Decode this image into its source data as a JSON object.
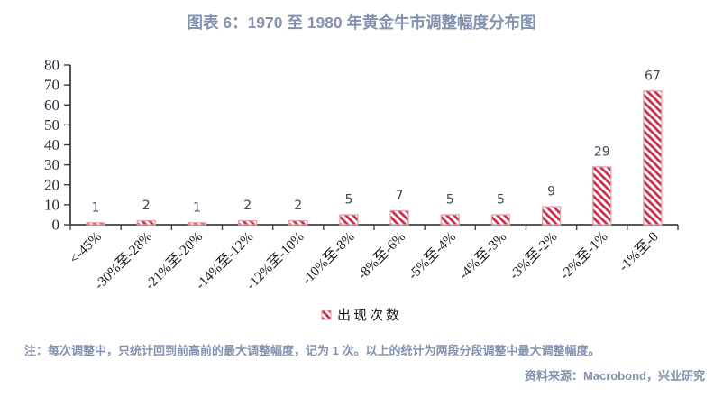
{
  "title": "图表 6：1970 至 1980 年黄金牛市调整幅度分布图",
  "legend": {
    "label": "出现次数"
  },
  "footer": {
    "note": "注：每次调整中，只统计回到前高前的最大调整幅度，记为 1 次。以上的统计为两段分段调整中最大调整幅度。",
    "source": "资料来源：Macrobond，兴业研究"
  },
  "colors": {
    "title_text": "#8292AF",
    "footer_text": "#8292AF",
    "bar_hatch": "#C5344E",
    "bar_border": "#E3A4AE",
    "axis": "#404040",
    "tick_label": "#1E2836",
    "value_label": "#3E4A5C",
    "x_label": "#1A1A1A"
  },
  "chart_data": {
    "type": "bar",
    "title": "图表 6：1970 至 1980 年黄金牛市调整幅度分布图",
    "categories": [
      "<-45%",
      "-30%至-28%",
      "-21%至-20%",
      "-14%至-12%",
      "-12%至-10%",
      "-10%至-8%",
      "-8%至-6%",
      "-5%至-4%",
      "-4%至-3%",
      "-3%至-2%",
      "-2%至-1%",
      "-1%至-0"
    ],
    "series": [
      {
        "name": "出现次数",
        "values": [
          1,
          2,
          1,
          2,
          2,
          5,
          7,
          5,
          5,
          9,
          29,
          67
        ]
      }
    ],
    "xlabel": "",
    "ylabel": "",
    "ylim": [
      0,
      80
    ],
    "yticks": [
      0,
      10,
      20,
      30,
      40,
      50,
      60,
      70,
      80
    ],
    "grid": false,
    "legend_position": "bottom",
    "bar_style": "diagonal-hatch",
    "value_labels": true
  }
}
